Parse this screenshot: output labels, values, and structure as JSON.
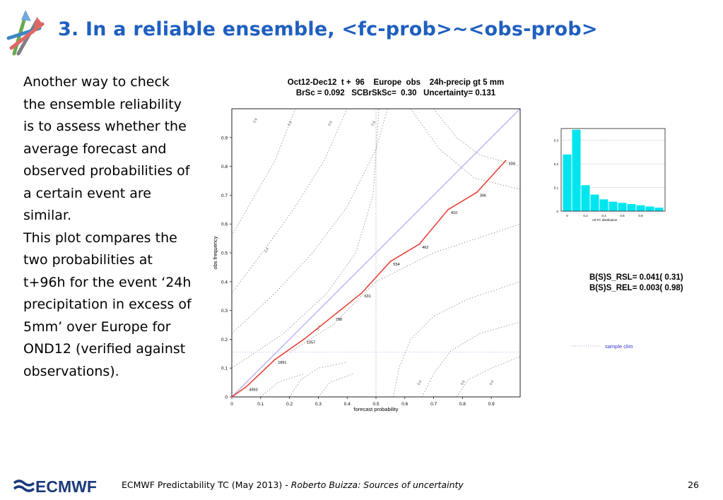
{
  "slide": {
    "title": "3. In a reliable ensemble, <fc-prob>~<obs-prob>",
    "body_paragraphs": [
      "Another way to check the ensemble reliability is to assess whether the average forecast and observed probabilities of a certain event are similar.",
      "This plot compares the two probabilities at t+96h for the event ‘24h precipitation in excess of 5mm’ over Europe for OND12 (verified against observations)."
    ],
    "footer_text": "ECMWF Predictability TC (May 2013) - ",
    "footer_author": "Roberto Buizza: Sources of uncertainty",
    "page_number": "26",
    "footer_logo_text": "ECMWF"
  },
  "chart_header": {
    "line1": "Oct12-Dec12  t +  96    Europe  obs    24h-precip gt 5 mm",
    "line2": "BrSc = 0.092   SCBrSkSc=  0.30   Uncertainty= 0.131"
  },
  "stats": {
    "rsl": "B(S)S_RSL= 0.041( 0.31)",
    "rel": "B(S)S_REL= 0.003( 0.98)"
  },
  "legend": {
    "sample_clim": "sample clim"
  },
  "colors": {
    "title": "#1f5fbf",
    "reliability_line": "#e8372e",
    "diagonal": "#b8b8f0",
    "histogram_bar": "#00e5ee",
    "contour": "#8a8a8a",
    "clim_line": "#9aa8e8"
  },
  "chart_data": [
    {
      "type": "line",
      "xlabel": "forecast probability",
      "ylabel": "obs frequency",
      "xlim": [
        0,
        1
      ],
      "ylim": [
        0,
        1
      ],
      "x_ticks": [
        "0",
        "0.1",
        "0.2",
        "0.3",
        "0.4",
        "0.5",
        "0.6",
        "0.7",
        "0.8",
        "0.9"
      ],
      "y_ticks": [
        "0",
        "0.1",
        "0.2",
        "0.3",
        "0.4",
        "0.5",
        "0.6",
        "0.7",
        "0.8",
        "0.9"
      ],
      "sample_climatology": 0.155,
      "series": [
        {
          "x": [
            0.0,
            0.05,
            0.15,
            0.25,
            0.35,
            0.45,
            0.55,
            0.65,
            0.75,
            0.85,
            0.95
          ],
          "y": [
            0.0,
            0.035,
            0.13,
            0.2,
            0.28,
            0.36,
            0.47,
            0.53,
            0.65,
            0.71,
            0.82
          ],
          "labels": [
            "",
            "4993",
            "1891",
            "1057",
            "788",
            "631",
            "554",
            "462",
            "410",
            "306",
            "209"
          ]
        }
      ],
      "diagonal": true,
      "contour_labels": [
        "0.6",
        "0.6",
        "0.6",
        "0.6",
        "0.4",
        "0.4",
        "0.6",
        "0.6",
        "0.6"
      ]
    },
    {
      "type": "bar",
      "xlabel": "rel FC distribution",
      "ylim": [
        0,
        0.35
      ],
      "x_ticks": [
        "0",
        "0.2",
        "0.4",
        "0.6",
        "0.8"
      ],
      "y_ticks": [
        "0",
        "0.1",
        "0.2",
        "0.3"
      ],
      "values": [
        0.24,
        0.345,
        0.11,
        0.07,
        0.05,
        0.04,
        0.035,
        0.03,
        0.025,
        0.02,
        0.015
      ]
    }
  ]
}
